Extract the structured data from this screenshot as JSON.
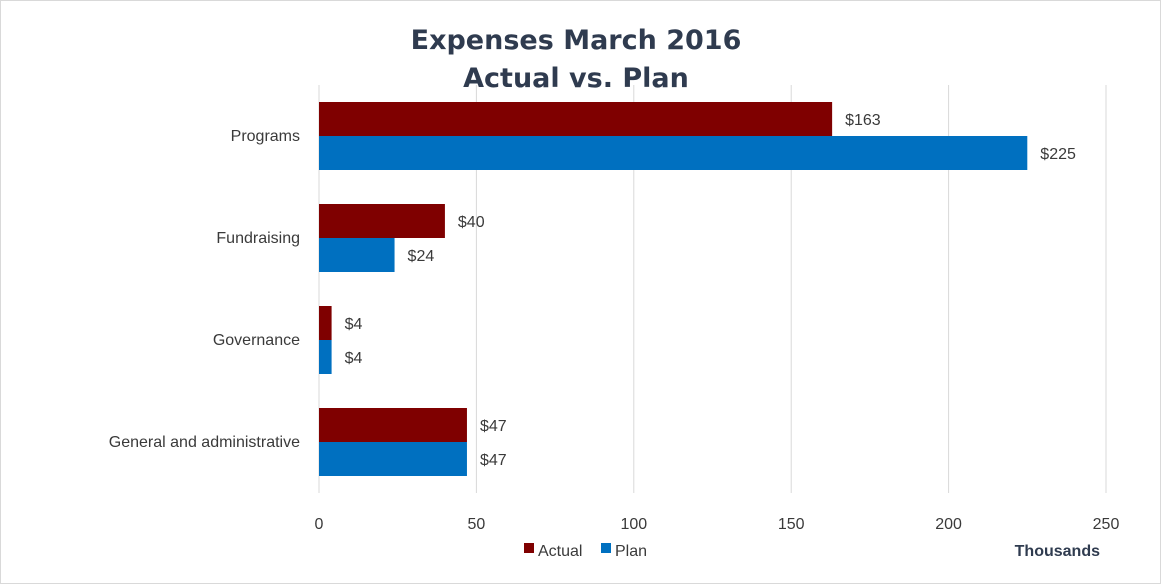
{
  "chart_data": {
    "type": "bar",
    "orientation": "horizontal",
    "title": [
      "Expenses March 2016",
      "Actual vs. Plan"
    ],
    "categories": [
      "Programs",
      "Fundraising",
      "Governance",
      "General and administrative"
    ],
    "series": [
      {
        "name": "Actual",
        "color": "#7f0000",
        "values": [
          163,
          40,
          4,
          47
        ],
        "labels": [
          "$163",
          "$40",
          "$4",
          "$47"
        ]
      },
      {
        "name": "Plan",
        "color": "#0070c0",
        "values": [
          225,
          24,
          4,
          47
        ],
        "labels": [
          "$225",
          "$24",
          "$4",
          "$47"
        ]
      }
    ],
    "xlim": [
      0,
      250
    ],
    "xticks": [
      0,
      50,
      100,
      150,
      200,
      250
    ],
    "xunit": "Thousands",
    "grid": "vertical",
    "gridColor": "#d9d9d9",
    "legend": "bottom"
  }
}
